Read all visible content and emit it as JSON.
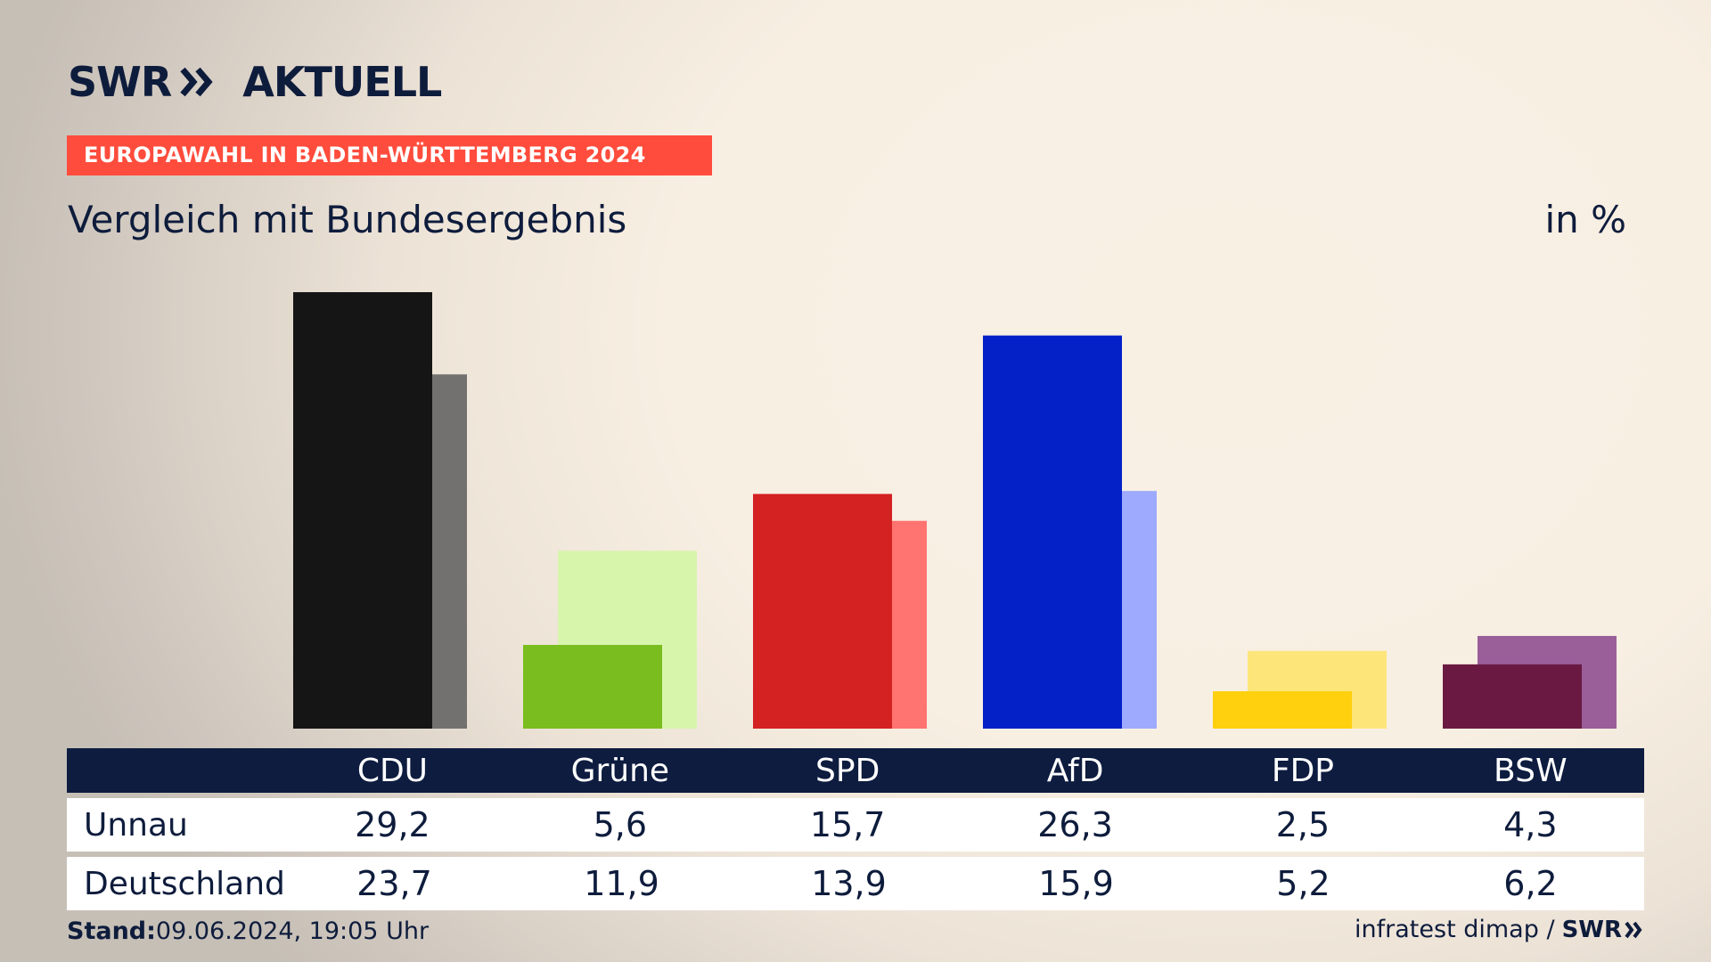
{
  "header": {
    "brand_swr": "SWR",
    "brand_aktuell": "AKTUELL",
    "kicker": "EUROPAWAHL IN BADEN-WÜRTTEMBERG 2024",
    "title": "Vergleich mit Bundesergebnis",
    "unit": "in %"
  },
  "table": {
    "rows": [
      {
        "label": "Unnau",
        "values": [
          "29,2",
          "5,6",
          "15,7",
          "26,3",
          "2,5",
          "4,3"
        ]
      },
      {
        "label": "Deutschland",
        "values": [
          "23,7",
          "11,9",
          "13,9",
          "15,9",
          "5,2",
          "6,2"
        ]
      }
    ]
  },
  "footer": {
    "stand_label": "Stand:",
    "stand_value": "09.06.2024, 19:05 Uhr",
    "source": "infratest dimap /",
    "source_brand": "SWR"
  },
  "colors": {
    "navy": "#0d1c3f",
    "kicker_red": "#ff4c3c",
    "CDU": {
      "local": "#161515",
      "national": "#727170"
    },
    "Grüne": {
      "local": "#79bd1e",
      "national": "#d8f5ac"
    },
    "SPD": {
      "local": "#d42121",
      "national": "#ff7470"
    },
    "AfD": {
      "local": "#0321c7",
      "national": "#9daafe"
    },
    "FDP": {
      "local": "#ffd00d",
      "national": "#fee57a"
    },
    "BSW": {
      "local": "#6a1a42",
      "national": "#9a5e99"
    }
  },
  "chart_data": {
    "type": "bar",
    "categories": [
      "CDU",
      "Grüne",
      "SPD",
      "AfD",
      "FDP",
      "BSW"
    ],
    "series": [
      {
        "name": "Unnau",
        "values": [
          29.2,
          5.6,
          15.7,
          26.3,
          2.5,
          4.3
        ]
      },
      {
        "name": "Deutschland",
        "values": [
          23.7,
          11.9,
          13.9,
          15.9,
          5.2,
          6.2
        ]
      }
    ],
    "title": "Vergleich mit Bundesergebnis",
    "ylabel": "in %",
    "ylim": [
      0,
      29.2
    ],
    "grid": false,
    "legend": "none"
  }
}
